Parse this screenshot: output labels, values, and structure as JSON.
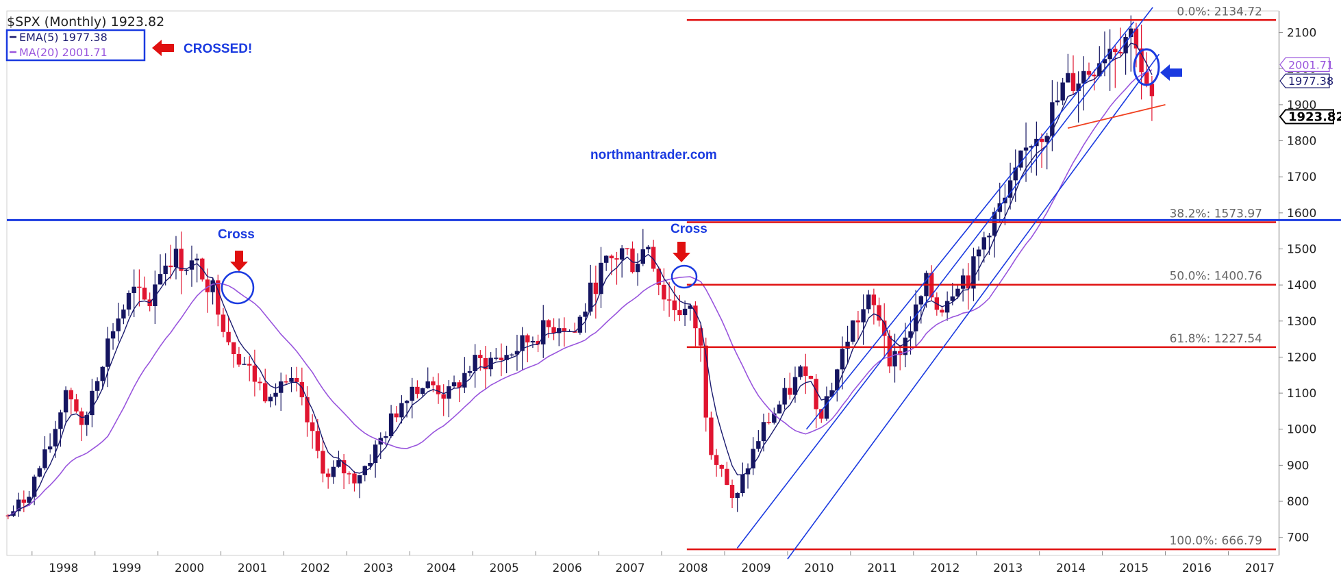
{
  "chart_data": {
    "type": "candlestick",
    "title": "$SPX (Monthly) 1923.82",
    "symbol": "$SPX",
    "period": "Monthly",
    "last_price": 1923.82,
    "last_price_label": "1923.82",
    "ylim": [
      650,
      2160
    ],
    "xlim": [
      1997.6,
      2017.8
    ],
    "y_ticks": [
      700,
      800,
      900,
      1000,
      1100,
      1200,
      1300,
      1400,
      1500,
      1600,
      1700,
      1800,
      1900,
      2000,
      2100
    ],
    "x_ticks": [
      "1998",
      "1999",
      "2000",
      "2001",
      "2002",
      "2003",
      "2004",
      "2005",
      "2006",
      "2007",
      "2008",
      "2009",
      "2010",
      "2011",
      "2012",
      "2013",
      "2014",
      "2015",
      "2016",
      "2017"
    ],
    "grid": false,
    "legend": {
      "position": "top-left",
      "entries": [
        {
          "label": "EMA(5) 1977.38",
          "color": "#1a1a6e"
        },
        {
          "label": "MA(20) 2001.71",
          "color": "#9955dd"
        }
      ]
    },
    "right_axis_labels": [
      {
        "text": "2001.71",
        "value": 2001.71,
        "color": "#9955dd"
      },
      {
        "text": "1977.38",
        "value": 1977.38,
        "color": "#1a1a6e"
      },
      {
        "text": "1923.82",
        "value": 1923.82,
        "color": "#000000"
      }
    ],
    "price_anchors": [
      [
        1997.62,
        760
      ],
      [
        1997.9,
        810
      ],
      [
        1998.3,
        960
      ],
      [
        1998.55,
        1120
      ],
      [
        1998.7,
        1060
      ],
      [
        1998.8,
        980
      ],
      [
        1998.95,
        1110
      ],
      [
        1999.3,
        1290
      ],
      [
        1999.6,
        1380
      ],
      [
        1999.85,
        1340
      ],
      [
        2000.0,
        1440
      ],
      [
        2000.2,
        1480
      ],
      [
        2000.45,
        1460
      ],
      [
        2000.7,
        1440
      ],
      [
        2000.9,
        1380
      ],
      [
        2001.1,
        1260
      ],
      [
        2001.3,
        1200
      ],
      [
        2001.7,
        1100
      ],
      [
        2001.95,
        1140
      ],
      [
        2002.2,
        1110
      ],
      [
        2002.5,
        950
      ],
      [
        2002.7,
        860
      ],
      [
        2002.85,
        900
      ],
      [
        2003.1,
        860
      ],
      [
        2003.3,
        900
      ],
      [
        2003.6,
        990
      ],
      [
        2004.0,
        1120
      ],
      [
        2004.4,
        1120
      ],
      [
        2004.6,
        1090
      ],
      [
        2005.0,
        1180
      ],
      [
        2005.5,
        1200
      ],
      [
        2006.0,
        1260
      ],
      [
        2006.4,
        1300
      ],
      [
        2006.6,
        1260
      ],
      [
        2007.0,
        1430
      ],
      [
        2007.4,
        1500
      ],
      [
        2007.55,
        1460
      ],
      [
        2007.8,
        1520
      ],
      [
        2008.0,
        1380
      ],
      [
        2008.2,
        1340
      ],
      [
        2008.45,
        1320
      ],
      [
        2008.6,
        1260
      ],
      [
        2008.75,
        960
      ],
      [
        2008.95,
        900
      ],
      [
        2009.15,
        780
      ],
      [
        2009.3,
        870
      ],
      [
        2009.6,
        1000
      ],
      [
        2010.0,
        1100
      ],
      [
        2010.3,
        1180
      ],
      [
        2010.5,
        1040
      ],
      [
        2010.7,
        1120
      ],
      [
        2011.0,
        1280
      ],
      [
        2011.3,
        1350
      ],
      [
        2011.5,
        1300
      ],
      [
        2011.65,
        1180
      ],
      [
        2011.9,
        1260
      ],
      [
        2012.2,
        1400
      ],
      [
        2012.4,
        1330
      ],
      [
        2012.7,
        1420
      ],
      [
        2012.9,
        1420
      ],
      [
        2013.2,
        1570
      ],
      [
        2013.5,
        1640
      ],
      [
        2013.9,
        1820
      ],
      [
        2014.1,
        1840
      ],
      [
        2014.4,
        1950
      ],
      [
        2014.8,
        2000
      ],
      [
        2015.0,
        2050
      ],
      [
        2015.4,
        2100
      ],
      [
        2015.55,
        2090
      ],
      [
        2015.65,
        1960
      ],
      [
        2015.72,
        1920
      ],
      [
        2015.78,
        1923
      ]
    ],
    "overlays": [
      {
        "type": "horizontal_line",
        "value": 1580,
        "color": "#1a3ae0",
        "note": ""
      },
      {
        "type": "fib_line",
        "label": "0.0%: 2134.72",
        "value": 2134.72,
        "color": "#e01010"
      },
      {
        "type": "fib_line",
        "label": "38.2%: 1573.97",
        "value": 1573.97,
        "color": "#e01010"
      },
      {
        "type": "fib_line",
        "label": "50.0%: 1400.76",
        "value": 1400.76,
        "color": "#e01010"
      },
      {
        "type": "fib_line",
        "label": "61.8%: 1227.54",
        "value": 1227.54,
        "color": "#e01010"
      },
      {
        "type": "fib_line",
        "label": "100.0%: 666.79",
        "value": 666.79,
        "color": "#e01010"
      },
      {
        "type": "trend_channel",
        "color": "#1a3ae0",
        "lines": [
          [
            [
              2009.2,
              670
            ],
            [
              2015.8,
              2170
            ]
          ],
          [
            [
              2010.0,
              640
            ],
            [
              2015.9,
              2040
            ]
          ],
          [
            [
              2010.3,
              1000
            ],
            [
              2015.5,
              2130
            ]
          ]
        ]
      },
      {
        "type": "trend_line",
        "color": "#f04020",
        "points": [
          [
            2014.45,
            1835
          ],
          [
            2016.0,
            1900
          ]
        ]
      }
    ],
    "annotations": [
      {
        "text": "CROSSED!",
        "color": "#1a3ae0",
        "placement": "top-left"
      },
      {
        "text": "Cross",
        "color": "#1a3ae0",
        "near": [
          2000.8,
          1540
        ]
      },
      {
        "text": "Cross",
        "color": "#1a3ae0",
        "near": [
          2008.0,
          1560
        ]
      },
      {
        "text": "northmantrader.com",
        "color": "#1a3ae0",
        "near": [
          2008.3,
          1835
        ]
      }
    ],
    "colors": {
      "up": "#151560",
      "down": "#e01530",
      "ema": "#1a1a6e",
      "ma": "#9955dd",
      "circle": "#1a3ae0",
      "arrow_red": "#e01010",
      "arrow_blue": "#1a3ae0"
    }
  }
}
